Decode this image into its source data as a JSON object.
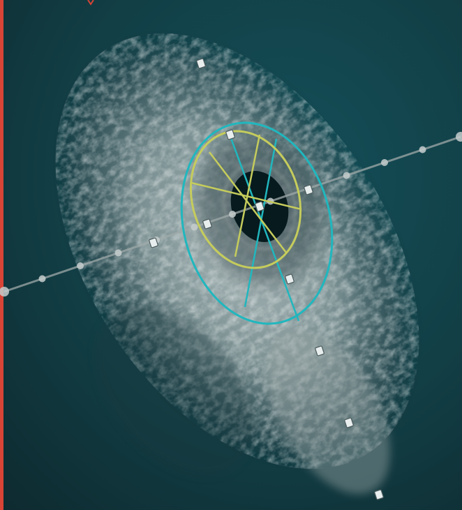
{
  "image": {
    "kind": "intravascular ultrasound cross-section",
    "text": ""
  },
  "colors": {
    "background_dark": "#0f2f35",
    "background_teal": "#11434a",
    "tissue": "#b8c0c0",
    "lumen": "#071a1e",
    "lumen_contour": "#c5cc5c",
    "vessel_contour": "#20b7be",
    "guide_line": "#9fa9a9",
    "edge_marker": "#d84436"
  },
  "overlays": {
    "lumen_contour": "ellipse",
    "lumen_diameter_lines": 3,
    "vessel_contour": "ellipse",
    "vessel_diameter_lines": 2,
    "guide_line_markers": 13
  }
}
